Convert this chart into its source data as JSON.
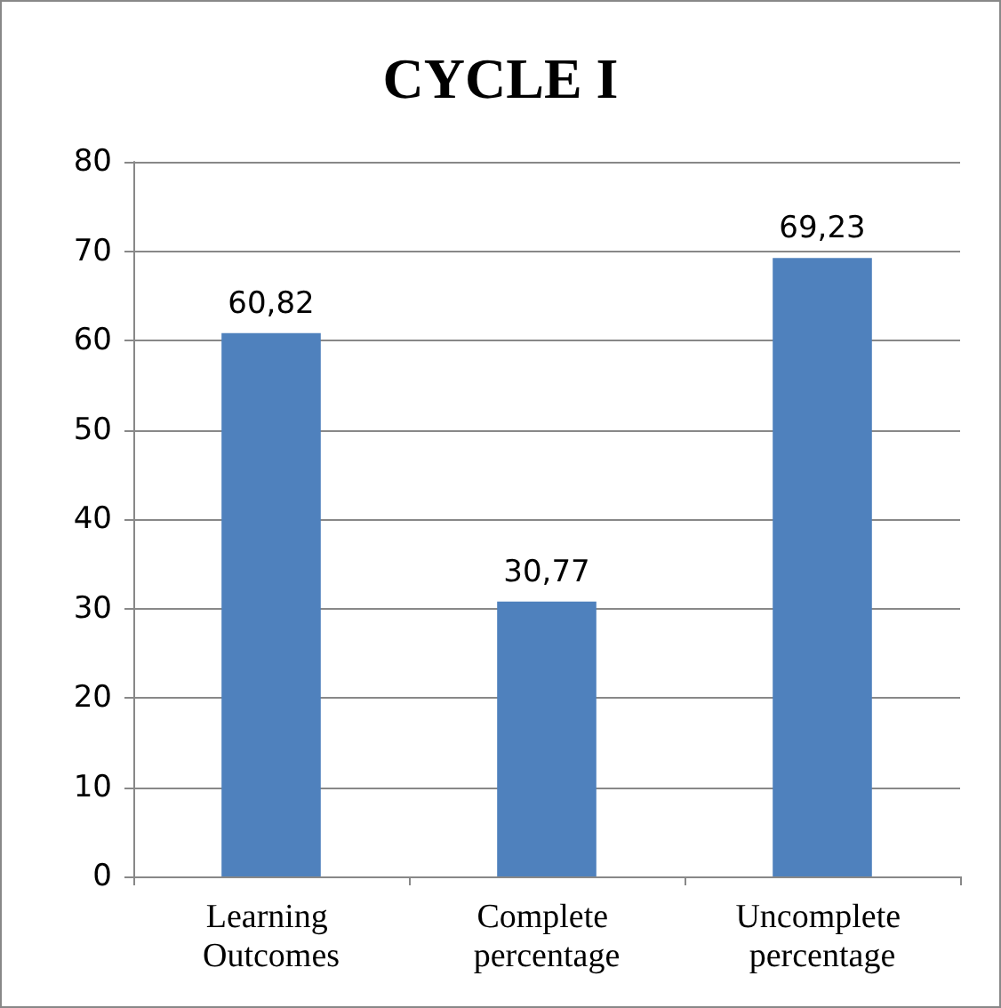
{
  "chart_data": {
    "type": "bar",
    "title": "CYCLE I",
    "categories": [
      "Learning Outcomes",
      "Complete percentage",
      "Uncomplete percentage"
    ],
    "values": [
      60.82,
      30.77,
      69.23
    ],
    "value_labels": [
      "60,82",
      "30,77",
      "69,23"
    ],
    "color": "#4f81bd",
    "ylim": [
      0,
      80
    ],
    "yticks": [
      0,
      10,
      20,
      30,
      40,
      50,
      60,
      70,
      80
    ],
    "grid": "y"
  }
}
